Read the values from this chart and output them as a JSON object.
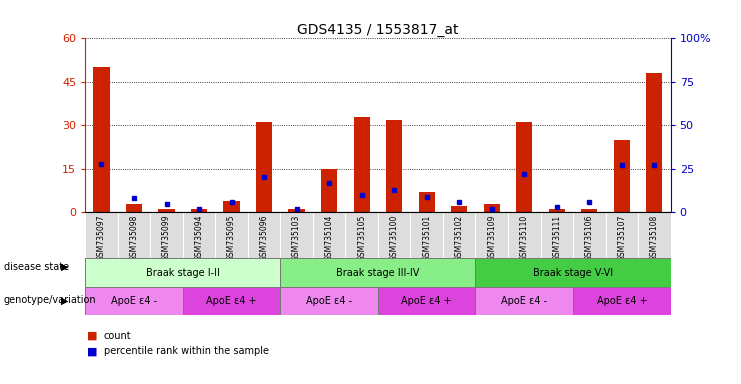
{
  "title": "GDS4135 / 1553817_at",
  "samples": [
    "GSM735097",
    "GSM735098",
    "GSM735099",
    "GSM735094",
    "GSM735095",
    "GSM735096",
    "GSM735103",
    "GSM735104",
    "GSM735105",
    "GSM735100",
    "GSM735101",
    "GSM735102",
    "GSM735109",
    "GSM735110",
    "GSM735111",
    "GSM735106",
    "GSM735107",
    "GSM735108"
  ],
  "counts": [
    50,
    3,
    1,
    1,
    4,
    31,
    1,
    15,
    33,
    32,
    7,
    2,
    3,
    31,
    1,
    1,
    25,
    48
  ],
  "percentiles_pct": [
    28,
    8,
    5,
    2,
    6,
    20,
    2,
    17,
    10,
    13,
    9,
    6,
    2,
    22,
    3,
    6,
    27,
    27
  ],
  "ylim_left": [
    0,
    60
  ],
  "ylim_right": [
    0,
    100
  ],
  "yticks_left": [
    0,
    15,
    30,
    45,
    60
  ],
  "yticks_right": [
    0,
    25,
    50,
    75,
    100
  ],
  "bar_color": "#cc2200",
  "point_color": "#0000cc",
  "disease_groups": [
    {
      "label": "Braak stage I-II",
      "start": 0,
      "end": 5,
      "color": "#ccffcc"
    },
    {
      "label": "Braak stage III-IV",
      "start": 6,
      "end": 11,
      "color": "#88ee88"
    },
    {
      "label": "Braak stage V-VI",
      "start": 12,
      "end": 17,
      "color": "#44cc44"
    }
  ],
  "genotype_groups": [
    {
      "label": "ApoE ε4 -",
      "start": 0,
      "end": 2,
      "color": "#ee88ee"
    },
    {
      "label": "ApoE ε4 +",
      "start": 3,
      "end": 5,
      "color": "#dd44dd"
    },
    {
      "label": "ApoE ε4 -",
      "start": 6,
      "end": 8,
      "color": "#ee88ee"
    },
    {
      "label": "ApoE ε4 +",
      "start": 9,
      "end": 11,
      "color": "#dd44dd"
    },
    {
      "label": "ApoE ε4 -",
      "start": 12,
      "end": 14,
      "color": "#ee88ee"
    },
    {
      "label": "ApoE ε4 +",
      "start": 15,
      "end": 17,
      "color": "#dd44dd"
    }
  ],
  "disease_row_label": "disease state",
  "geno_row_label": "genotype/variation",
  "legend": [
    {
      "label": "count",
      "color": "#cc2200"
    },
    {
      "label": "percentile rank within the sample",
      "color": "#0000cc"
    }
  ],
  "xtick_bg": "#dddddd",
  "spine_color": "#000000"
}
